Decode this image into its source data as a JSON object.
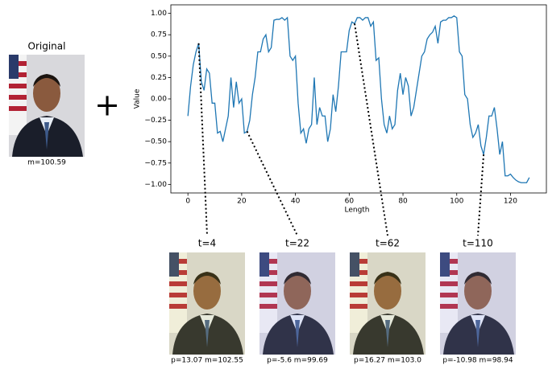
{
  "chart_data": {
    "type": "line",
    "xlabel": "Length",
    "ylabel": "Value",
    "x": [
      0,
      1,
      2,
      3,
      4,
      5,
      6,
      7,
      8,
      9,
      10,
      11,
      12,
      13,
      14,
      15,
      16,
      17,
      18,
      19,
      20,
      21,
      22,
      23,
      24,
      25,
      26,
      27,
      28,
      29,
      30,
      31,
      32,
      33,
      34,
      35,
      36,
      37,
      38,
      39,
      40,
      41,
      42,
      43,
      44,
      45,
      46,
      47,
      48,
      49,
      50,
      51,
      52,
      53,
      54,
      55,
      56,
      57,
      58,
      59,
      60,
      61,
      62,
      63,
      64,
      65,
      66,
      67,
      68,
      69,
      70,
      71,
      72,
      73,
      74,
      75,
      76,
      77,
      78,
      79,
      80,
      81,
      82,
      83,
      84,
      85,
      86,
      87,
      88,
      89,
      90,
      91,
      92,
      93,
      94,
      95,
      96,
      97,
      98,
      99,
      100,
      101,
      102,
      103,
      104,
      105,
      106,
      107,
      108,
      109,
      110,
      111,
      112,
      113,
      114,
      115,
      116,
      117,
      118,
      119,
      120,
      121,
      122,
      123,
      124,
      125,
      126,
      127
    ],
    "series": [
      {
        "color": "#1f77b4",
        "values": [
          -0.2,
          0.15,
          0.4,
          0.55,
          0.65,
          0.2,
          0.1,
          0.35,
          0.3,
          -0.05,
          -0.05,
          -0.4,
          -0.38,
          -0.5,
          -0.35,
          -0.2,
          0.25,
          -0.1,
          0.2,
          -0.05,
          0.0,
          -0.4,
          -0.38,
          -0.25,
          0.05,
          0.25,
          0.55,
          0.55,
          0.7,
          0.75,
          0.55,
          0.6,
          0.92,
          0.93,
          0.93,
          0.95,
          0.92,
          0.95,
          0.5,
          0.45,
          0.5,
          -0.05,
          -0.4,
          -0.35,
          -0.52,
          -0.35,
          -0.3,
          0.25,
          -0.3,
          -0.1,
          -0.2,
          -0.2,
          -0.5,
          -0.35,
          0.05,
          -0.15,
          0.15,
          0.55,
          0.55,
          0.55,
          0.8,
          0.9,
          0.88,
          0.95,
          0.95,
          0.92,
          0.95,
          0.95,
          0.85,
          0.9,
          0.45,
          0.48,
          0.0,
          -0.3,
          -0.4,
          -0.2,
          -0.35,
          -0.3,
          0.1,
          0.3,
          0.05,
          0.25,
          0.15,
          -0.2,
          -0.1,
          0.1,
          0.3,
          0.5,
          0.55,
          0.7,
          0.75,
          0.78,
          0.85,
          0.65,
          0.9,
          0.92,
          0.92,
          0.95,
          0.95,
          0.97,
          0.95,
          0.55,
          0.5,
          0.05,
          0.0,
          -0.3,
          -0.45,
          -0.4,
          -0.3,
          -0.55,
          -0.65,
          -0.45,
          -0.2,
          -0.2,
          -0.1,
          -0.35,
          -0.65,
          -0.5,
          -0.9,
          -0.9,
          -0.88,
          -0.92,
          -0.95,
          -0.97,
          -0.98,
          -0.98,
          -0.98,
          -0.92
        ]
      }
    ],
    "xlim": [
      -6.35,
      133.35
    ],
    "ylim": [
      -1.1,
      1.1
    ],
    "xticks": [
      0,
      20,
      40,
      60,
      80,
      100,
      120
    ],
    "yticks": [
      {
        "value": -1,
        "label": "−1.00"
      },
      {
        "value": -0.75,
        "label": "−0.75"
      },
      {
        "value": -0.5,
        "label": "−0.50"
      },
      {
        "value": -0.25,
        "label": "−0.25"
      },
      {
        "value": 0,
        "label": "0.00"
      },
      {
        "value": 0.25,
        "label": "0.25"
      },
      {
        "value": 0.5,
        "label": "0.50"
      },
      {
        "value": 0.75,
        "label": "0.75"
      },
      {
        "value": 1,
        "label": "1.00"
      }
    ]
  },
  "original": {
    "title": "Original",
    "caption": "m=100.59"
  },
  "operator": "+",
  "samples": [
    {
      "t": {
        "value": 4,
        "label": "t=4"
      },
      "caption": "p=13.07 m=102.55"
    },
    {
      "t": {
        "value": 22,
        "label": "t=22"
      },
      "caption": "p=-5.6 m=99.69"
    },
    {
      "t": {
        "value": 62,
        "label": "t=62"
      },
      "caption": "p=16.27 m=103.0"
    },
    {
      "t": {
        "value": 110,
        "label": "t=110"
      },
      "caption": "p=-10.98 m=98.94"
    }
  ]
}
